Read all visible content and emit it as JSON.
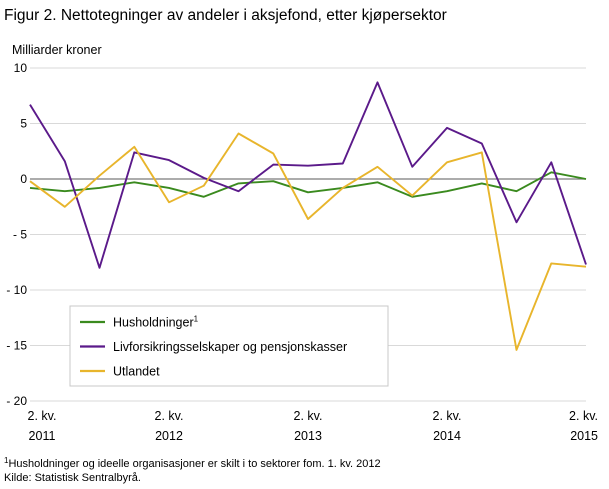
{
  "title": "Figur 2. Nettotegninger av andeler i aksjefond, etter kjøpersektor",
  "chart_data": {
    "type": "line",
    "ylabel": "Milliarder  kroner",
    "ylim": [
      -20,
      10
    ],
    "yticks": [
      10,
      5,
      0,
      -5,
      -10,
      -15,
      -20
    ],
    "ytick_labels": [
      "10",
      "5",
      "0",
      "- 5",
      "- 10",
      "- 15",
      "- 20"
    ],
    "xlim": [
      0,
      16
    ],
    "x_tick_labels": [
      {
        "line1": "2. kv.",
        "line2": "2011"
      },
      {
        "line1": "2. kv.",
        "line2": "2012"
      },
      {
        "line1": "2. kv.",
        "line2": "2013"
      },
      {
        "line1": "2. kv.",
        "line2": "2014"
      },
      {
        "line1": "2. kv.",
        "line2": "2015"
      }
    ],
    "grid": "horizontal",
    "legend_position": "bottom-left inside",
    "series": [
      {
        "name": "Husholdninger",
        "sup": "1",
        "color": "#3a8a1e",
        "values": [
          -0.8,
          -1.1,
          -0.8,
          -0.3,
          -0.8,
          -1.6,
          -0.4,
          -0.2,
          -1.2,
          -0.8,
          -0.3,
          -1.6,
          -1.1,
          -0.4,
          -1.1,
          0.6,
          0.0
        ]
      },
      {
        "name": "Livforsikringsselskaper og pensjonskasser",
        "sup": "",
        "color": "#5b1a8a",
        "values": [
          6.7,
          1.6,
          -8.0,
          2.4,
          1.7,
          0.1,
          -1.1,
          1.3,
          1.2,
          1.4,
          8.7,
          1.1,
          4.6,
          3.2,
          -3.9,
          1.5,
          -7.7
        ]
      },
      {
        "name": "Utlandet",
        "sup": "",
        "color": "#e8b52c",
        "values": [
          -0.2,
          -2.5,
          0.3,
          2.9,
          -2.1,
          -0.6,
          4.1,
          2.3,
          -3.6,
          -0.8,
          1.1,
          -1.5,
          1.5,
          2.4,
          -15.4,
          -7.6,
          -7.9
        ]
      }
    ]
  },
  "footnote": {
    "line1_sup": "1",
    "line1": "Husholdninger og ideelle organisasjoner er skilt i to sektorer fom. 1. kv. 2012",
    "line2": "Kilde: Statistisk Sentralbyrå."
  }
}
